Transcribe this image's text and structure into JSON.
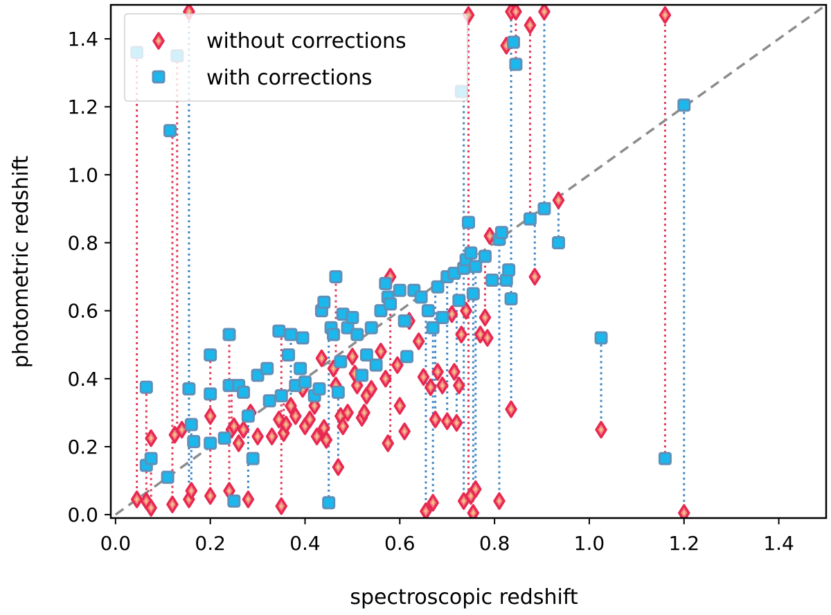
{
  "chart_data": {
    "type": "scatter",
    "title": "",
    "xlabel": "spectroscopic redshift",
    "ylabel": "photometric redshift",
    "xlim": [
      -0.01,
      1.5
    ],
    "ylim": [
      -0.01,
      1.5
    ],
    "xticks": [
      "0.0",
      "0.2",
      "0.4",
      "0.6",
      "0.8",
      "1.0",
      "1.2",
      "1.4"
    ],
    "yticks": [
      "0.0",
      "0.2",
      "0.4",
      "0.6",
      "0.8",
      "1.0",
      "1.2",
      "1.4"
    ],
    "grid": false,
    "legend_position": "top-left",
    "reference_line": {
      "style": "dashed",
      "color": "#8c8c8c",
      "x": [
        0,
        1.5
      ],
      "y": [
        0,
        1.5
      ]
    },
    "series": [
      {
        "name": "without corrections",
        "marker": "diamond",
        "color": "#e8284f",
        "points": [
          [
            0.045,
            0.045
          ],
          [
            0.065,
            0.04
          ],
          [
            0.075,
            0.02
          ],
          [
            0.075,
            0.225
          ],
          [
            0.12,
            0.03
          ],
          [
            0.125,
            0.235
          ],
          [
            0.14,
            0.25
          ],
          [
            0.155,
            0.045
          ],
          [
            0.16,
            0.07
          ],
          [
            0.155,
            1.48
          ],
          [
            0.2,
            0.055
          ],
          [
            0.2,
            0.29
          ],
          [
            0.24,
            0.07
          ],
          [
            0.245,
            0.25
          ],
          [
            0.25,
            0.26
          ],
          [
            0.26,
            0.21
          ],
          [
            0.27,
            0.25
          ],
          [
            0.28,
            0.045
          ],
          [
            0.285,
            0.3
          ],
          [
            0.3,
            0.23
          ],
          [
            0.33,
            0.23
          ],
          [
            0.345,
            0.28
          ],
          [
            0.35,
            0.025
          ],
          [
            0.355,
            0.24
          ],
          [
            0.36,
            0.265
          ],
          [
            0.37,
            0.32
          ],
          [
            0.38,
            0.29
          ],
          [
            0.395,
            0.37
          ],
          [
            0.4,
            0.26
          ],
          [
            0.41,
            0.28
          ],
          [
            0.42,
            0.32
          ],
          [
            0.425,
            0.23
          ],
          [
            0.435,
            0.46
          ],
          [
            0.44,
            0.255
          ],
          [
            0.445,
            0.22
          ],
          [
            0.46,
            0.43
          ],
          [
            0.465,
            0.38
          ],
          [
            0.47,
            0.14
          ],
          [
            0.475,
            0.29
          ],
          [
            0.48,
            0.26
          ],
          [
            0.49,
            0.3
          ],
          [
            0.5,
            0.465
          ],
          [
            0.505,
            0.415
          ],
          [
            0.51,
            0.38
          ],
          [
            0.52,
            0.285
          ],
          [
            0.525,
            0.3
          ],
          [
            0.53,
            0.35
          ],
          [
            0.54,
            0.37
          ],
          [
            0.56,
            0.48
          ],
          [
            0.57,
            0.4
          ],
          [
            0.575,
            0.21
          ],
          [
            0.58,
            0.7
          ],
          [
            0.595,
            0.44
          ],
          [
            0.6,
            0.32
          ],
          [
            0.61,
            0.245
          ],
          [
            0.62,
            0.57
          ],
          [
            0.64,
            0.51
          ],
          [
            0.65,
            0.405
          ],
          [
            0.655,
            0.01
          ],
          [
            0.665,
            0.375
          ],
          [
            0.67,
            0.035
          ],
          [
            0.675,
            0.28
          ],
          [
            0.68,
            0.42
          ],
          [
            0.69,
            0.38
          ],
          [
            0.7,
            0.275
          ],
          [
            0.71,
            0.59
          ],
          [
            0.715,
            0.42
          ],
          [
            0.72,
            0.27
          ],
          [
            0.725,
            0.38
          ],
          [
            0.73,
            0.53
          ],
          [
            0.735,
            0.04
          ],
          [
            0.74,
            0.6
          ],
          [
            0.745,
            1.47
          ],
          [
            0.75,
            0.055
          ],
          [
            0.755,
            0.005
          ],
          [
            0.76,
            0.075
          ],
          [
            0.77,
            0.53
          ],
          [
            0.78,
            0.58
          ],
          [
            0.785,
            0.52
          ],
          [
            0.79,
            0.82
          ],
          [
            0.81,
            0.04
          ],
          [
            0.825,
            1.38
          ],
          [
            0.835,
            0.31
          ],
          [
            0.835,
            1.48
          ],
          [
            0.845,
            1.48
          ],
          [
            0.875,
            1.44
          ],
          [
            0.885,
            0.7
          ],
          [
            0.905,
            1.48
          ],
          [
            0.935,
            0.925
          ],
          [
            1.025,
            0.25
          ],
          [
            1.16,
            1.47
          ],
          [
            1.2,
            0.005
          ]
        ]
      },
      {
        "name": "with corrections",
        "marker": "square",
        "color": "#1ab8ec",
        "points": [
          [
            0.045,
            1.36
          ],
          [
            0.065,
            0.375
          ],
          [
            0.065,
            0.145
          ],
          [
            0.075,
            0.165
          ],
          [
            0.11,
            0.11
          ],
          [
            0.115,
            1.13
          ],
          [
            0.13,
            1.35
          ],
          [
            0.155,
            0.37
          ],
          [
            0.16,
            0.265
          ],
          [
            0.165,
            0.215
          ],
          [
            0.2,
            0.47
          ],
          [
            0.2,
            0.355
          ],
          [
            0.2,
            0.21
          ],
          [
            0.23,
            0.225
          ],
          [
            0.24,
            0.53
          ],
          [
            0.24,
            0.38
          ],
          [
            0.25,
            0.04
          ],
          [
            0.26,
            0.38
          ],
          [
            0.27,
            0.36
          ],
          [
            0.28,
            0.29
          ],
          [
            0.29,
            0.165
          ],
          [
            0.3,
            0.41
          ],
          [
            0.32,
            0.43
          ],
          [
            0.325,
            0.335
          ],
          [
            0.345,
            0.54
          ],
          [
            0.35,
            0.35
          ],
          [
            0.365,
            0.47
          ],
          [
            0.37,
            0.53
          ],
          [
            0.38,
            0.38
          ],
          [
            0.39,
            0.43
          ],
          [
            0.395,
            0.52
          ],
          [
            0.4,
            0.39
          ],
          [
            0.42,
            0.35
          ],
          [
            0.43,
            0.37
          ],
          [
            0.435,
            0.6
          ],
          [
            0.44,
            0.625
          ],
          [
            0.45,
            0.035
          ],
          [
            0.455,
            0.55
          ],
          [
            0.46,
            0.53
          ],
          [
            0.465,
            0.7
          ],
          [
            0.47,
            0.36
          ],
          [
            0.475,
            0.45
          ],
          [
            0.48,
            0.59
          ],
          [
            0.49,
            0.55
          ],
          [
            0.5,
            0.58
          ],
          [
            0.51,
            0.53
          ],
          [
            0.52,
            0.41
          ],
          [
            0.53,
            0.47
          ],
          [
            0.54,
            0.55
          ],
          [
            0.55,
            0.44
          ],
          [
            0.56,
            0.6
          ],
          [
            0.57,
            0.68
          ],
          [
            0.575,
            0.64
          ],
          [
            0.58,
            0.62
          ],
          [
            0.6,
            0.66
          ],
          [
            0.61,
            0.57
          ],
          [
            0.615,
            0.465
          ],
          [
            0.63,
            0.66
          ],
          [
            0.645,
            0.64
          ],
          [
            0.66,
            0.6
          ],
          [
            0.67,
            0.55
          ],
          [
            0.68,
            0.67
          ],
          [
            0.69,
            0.58
          ],
          [
            0.7,
            0.7
          ],
          [
            0.715,
            0.71
          ],
          [
            0.725,
            0.63
          ],
          [
            0.73,
            1.245
          ],
          [
            0.735,
            0.725
          ],
          [
            0.74,
            0.75
          ],
          [
            0.745,
            0.86
          ],
          [
            0.75,
            0.77
          ],
          [
            0.755,
            0.65
          ],
          [
            0.76,
            0.73
          ],
          [
            0.78,
            0.76
          ],
          [
            0.795,
            0.69
          ],
          [
            0.81,
            0.81
          ],
          [
            0.815,
            0.83
          ],
          [
            0.825,
            0.69
          ],
          [
            0.83,
            0.72
          ],
          [
            0.835,
            0.635
          ],
          [
            0.84,
            1.39
          ],
          [
            0.845,
            1.325
          ],
          [
            0.875,
            0.87
          ],
          [
            0.905,
            0.9
          ],
          [
            0.935,
            0.8
          ],
          [
            1.025,
            0.52
          ],
          [
            1.16,
            0.165
          ],
          [
            1.2,
            1.205
          ]
        ]
      }
    ],
    "connectors": [
      [
        0.045,
        0.045,
        1.36,
        "r"
      ],
      [
        0.065,
        0.04,
        0.375,
        "r"
      ],
      [
        0.075,
        0.02,
        0.165,
        "r"
      ],
      [
        0.12,
        0.03,
        1.13,
        "r"
      ],
      [
        0.13,
        0.235,
        1.35,
        "r"
      ],
      [
        0.155,
        0.045,
        1.48,
        "b"
      ],
      [
        0.16,
        0.07,
        0.265,
        "b"
      ],
      [
        0.2,
        0.055,
        0.47,
        "r"
      ],
      [
        0.24,
        0.07,
        0.53,
        "r"
      ],
      [
        0.245,
        0.25,
        0.38,
        "r"
      ],
      [
        0.28,
        0.045,
        0.29,
        "b"
      ],
      [
        0.35,
        0.025,
        0.54,
        "r"
      ],
      [
        0.355,
        0.24,
        0.35,
        "r"
      ],
      [
        0.37,
        0.32,
        0.53,
        "b"
      ],
      [
        0.45,
        0.035,
        0.55,
        "b"
      ],
      [
        0.465,
        0.38,
        0.7,
        "r"
      ],
      [
        0.47,
        0.14,
        0.36,
        "b"
      ],
      [
        0.58,
        0.21,
        0.7,
        "r"
      ],
      [
        0.655,
        0.01,
        0.6,
        "b"
      ],
      [
        0.67,
        0.035,
        0.55,
        "b"
      ],
      [
        0.675,
        0.28,
        0.67,
        "b"
      ],
      [
        0.7,
        0.275,
        0.7,
        "b"
      ],
      [
        0.72,
        0.27,
        0.71,
        "b"
      ],
      [
        0.735,
        0.04,
        1.245,
        "b"
      ],
      [
        0.745,
        0.055,
        1.47,
        "r"
      ],
      [
        0.755,
        0.005,
        0.77,
        "b"
      ],
      [
        0.76,
        0.075,
        0.73,
        "b"
      ],
      [
        0.78,
        0.58,
        0.76,
        "r"
      ],
      [
        0.81,
        0.04,
        0.81,
        "b"
      ],
      [
        0.835,
        0.31,
        1.48,
        "b"
      ],
      [
        0.845,
        1.325,
        1.48,
        "r"
      ],
      [
        0.875,
        0.87,
        1.44,
        "r"
      ],
      [
        0.885,
        0.7,
        0.87,
        "b"
      ],
      [
        0.905,
        0.9,
        1.48,
        "b"
      ],
      [
        0.935,
        0.8,
        0.925,
        "b"
      ],
      [
        1.025,
        0.25,
        0.52,
        "b"
      ],
      [
        1.16,
        0.165,
        1.47,
        "r"
      ],
      [
        1.2,
        0.005,
        1.205,
        "b"
      ]
    ]
  },
  "legend": {
    "items": [
      "without corrections",
      "with corrections"
    ]
  }
}
